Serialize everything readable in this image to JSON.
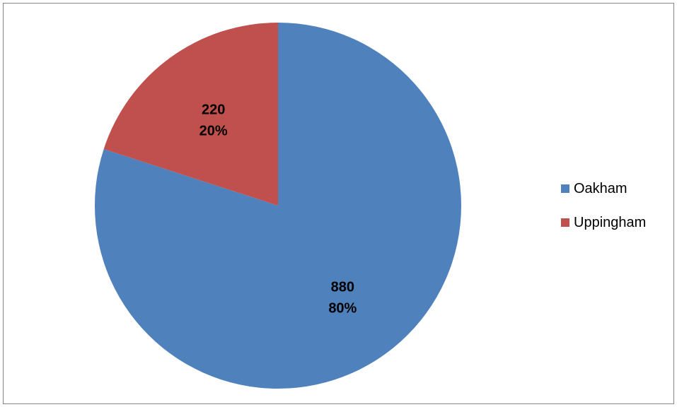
{
  "chart_data": {
    "type": "pie",
    "categories": [
      "Oakham",
      "Uppingham"
    ],
    "values": [
      880,
      220
    ],
    "percentages": [
      "80%",
      "20%"
    ],
    "value_labels": [
      "880",
      "220"
    ],
    "colors": [
      "#4F81BD",
      "#C0504D"
    ],
    "legend_position": "right",
    "start_angle": "12 o'clock",
    "direction": "clockwise"
  }
}
